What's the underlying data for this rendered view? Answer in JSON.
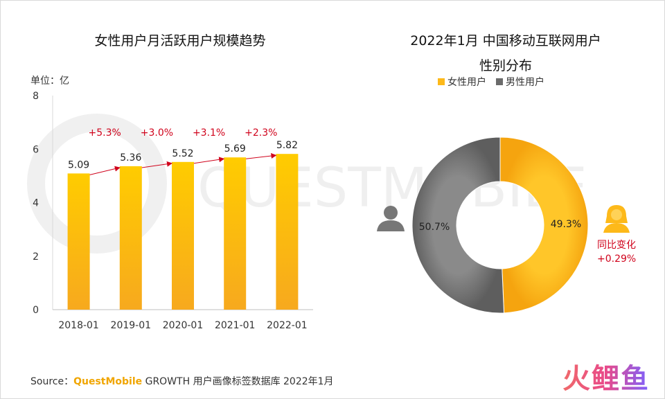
{
  "left_title": "女性用户月活跃用户规模趋势",
  "right_title_line1": "2022年1月 中国移动互联网用户",
  "right_title_line2": "性别分布",
  "unit_label": "单位：亿",
  "source_prefix": "Source：",
  "source_brand": "QuestMobile",
  "source_rest": " GROWTH 用户画像标签数据库 2022年1月",
  "yoy_label": "同比变化",
  "yoy_value": "+0.29%",
  "watermark_text": "QUESTMOBILE",
  "corner_logo": "火鲤鱼",
  "colors": {
    "bar": "#ffc107",
    "bar_dark": "#f5a623",
    "female": "#fdb91a",
    "male": "#6b6b6b",
    "growth": "#d0021b"
  },
  "chart_data": [
    {
      "type": "bar",
      "title": "女性用户月活跃用户规模趋势",
      "ylabel": "单位：亿",
      "categories": [
        "2018-01",
        "2019-01",
        "2020-01",
        "2021-01",
        "2022-01"
      ],
      "values": [
        5.09,
        5.36,
        5.52,
        5.69,
        5.82
      ],
      "value_labels": [
        "5.09",
        "5.36",
        "5.52",
        "5.69",
        "5.82"
      ],
      "growth_labels": [
        "+5.3%",
        "+3.0%",
        "+3.1%",
        "+2.3%"
      ],
      "yticks": [
        "0",
        "2",
        "4",
        "6",
        "8"
      ],
      "ylim": [
        0,
        8
      ]
    },
    {
      "type": "pie",
      "title": "2022年1月 中国移动互联网用户性别分布",
      "legend_position": "top",
      "series": [
        {
          "name": "女性用户",
          "value": 49.3,
          "label": "49.3%"
        },
        {
          "name": "男性用户",
          "value": 50.7,
          "label": "50.7%"
        }
      ]
    }
  ]
}
